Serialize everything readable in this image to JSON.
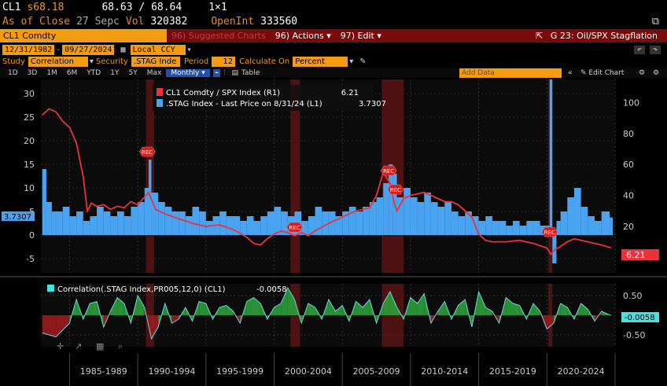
{
  "header": {
    "ticker": "CL1",
    "price": "s68.18",
    "bid_ask": "68.63 / 68.64",
    "size": "1×1",
    "close_label": "As of Close",
    "close_date": "27 Sepc",
    "vol_label": "Vol",
    "vol_value": "320382",
    "openint_label": "OpenInt",
    "openint_value": "333560"
  },
  "toolbar": {
    "security": "CL1 Comdty",
    "suggested": "96) Suggested Charts",
    "actions": "96) Actions",
    "edit": "97) Edit",
    "chart_title": "G 23: Oil/SPX Stagflation"
  },
  "range": {
    "start": "12/31/1982",
    "end": "09/27/2024",
    "ccy": "Local CCY"
  },
  "study": {
    "study_label": "Study",
    "study_value": "Correlation",
    "security_label": "Security",
    "security_value": ".STAG Inde",
    "period_label": "Period",
    "period_value": "12",
    "calc_label": "Calculate On",
    "calc_value": "Percent"
  },
  "tabs": {
    "items": [
      "1D",
      "3D",
      "1M",
      "6M",
      "YTD",
      "1Y",
      "5Y",
      "Max"
    ],
    "freq": "Monthly",
    "table": "Table",
    "add_data": "Add Data",
    "edit_chart": "Edit Chart"
  },
  "legend": {
    "s1_label": "CL1 Comdty / SPX Index (R1)",
    "s1_value": "6.21",
    "s2_label": ".STAG Index - Last Price on 8/31/24 (L1)",
    "s2_value": "3.7307",
    "last_left": "3.7307",
    "last_right": "6.21"
  },
  "recession_label": "REC",
  "lower": {
    "legend": "Correlation(.STAG Index,PR005,12,0) (CL1)",
    "value": "-0.0058",
    "last": "-0.0058"
  },
  "colors": {
    "orange": "#f39c12",
    "red": "#e8323c",
    "blue": "#4aa3f0",
    "green": "#2e9e3a",
    "darkred": "#9a1c1c"
  },
  "chart_data": {
    "type": "bar+line",
    "x_ticks": [
      "1985-1989",
      "1990-1994",
      "1995-1999",
      "2000-2004",
      "2005-2009",
      "2010-2014",
      "2015-2019",
      "2020-2024"
    ],
    "left_axis": {
      "ticks": [
        30,
        25,
        20,
        15,
        10,
        5,
        0,
        -5
      ],
      "ylim": [
        -8,
        33
      ]
    },
    "right_axis": {
      "ticks": [
        100,
        80,
        60,
        40,
        20,
        0
      ],
      "ylim": [
        -10,
        115
      ]
    },
    "recessions": [
      [
        1990.6,
        1991.2
      ],
      [
        2001.2,
        2001.9
      ],
      [
        2007.9,
        2009.5
      ],
      [
        2020.1,
        2020.4
      ]
    ],
    "series": [
      {
        "name": ".STAG Index",
        "axis": "left",
        "style": "bar",
        "x": [
          1983.0,
          1983.3,
          1983.7,
          1984.0,
          1984.5,
          1985.0,
          1985.5,
          1986.0,
          1986.5,
          1987.0,
          1987.5,
          1988.0,
          1988.5,
          1989.0,
          1989.5,
          1990.0,
          1990.5,
          1990.8,
          1991.0,
          1991.5,
          1992.0,
          1992.5,
          1993.0,
          1993.5,
          1994.0,
          1994.5,
          1995.0,
          1995.5,
          1996.0,
          1996.5,
          1997.0,
          1997.5,
          1998.0,
          1998.5,
          1999.0,
          1999.5,
          2000.0,
          2000.5,
          2001.0,
          2001.5,
          2002.0,
          2002.5,
          2003.0,
          2003.5,
          2004.0,
          2004.5,
          2005.0,
          2005.5,
          2006.0,
          2006.5,
          2007.0,
          2007.5,
          2008.0,
          2008.4,
          2008.7,
          2009.0,
          2009.5,
          2010.0,
          2010.5,
          2011.0,
          2011.5,
          2012.0,
          2012.5,
          2013.0,
          2013.5,
          2014.0,
          2014.5,
          2015.0,
          2015.5,
          2016.0,
          2016.5,
          2017.0,
          2017.5,
          2018.0,
          2018.5,
          2019.0,
          2019.5,
          2020.0,
          2020.2,
          2020.4,
          2020.7,
          2021.0,
          2021.5,
          2022.0,
          2022.5,
          2023.0,
          2023.5,
          2024.0,
          2024.6
        ],
        "values": [
          14,
          7,
          5,
          5,
          6,
          4,
          5,
          3,
          4,
          6,
          5,
          4,
          5,
          4,
          6,
          7,
          10,
          16,
          9,
          7,
          6,
          5,
          5,
          4,
          6,
          5,
          3,
          4,
          5,
          4,
          4,
          3,
          4,
          3,
          4,
          5,
          6,
          5,
          4,
          5,
          3,
          4,
          6,
          5,
          5,
          4,
          5,
          6,
          5,
          6,
          7,
          8,
          11,
          15,
          13,
          8,
          10,
          8,
          7,
          9,
          7,
          6,
          7,
          5,
          4,
          5,
          4,
          3,
          4,
          3,
          3,
          2,
          3,
          2,
          3,
          3,
          2,
          2,
          33,
          -6,
          3,
          5,
          8,
          10,
          6,
          4,
          3,
          5,
          3.7307
        ]
      },
      {
        "name": "CL1 Comdty / SPX Index",
        "axis": "right",
        "style": "line",
        "x": [
          1983.0,
          1983.5,
          1984.0,
          1984.5,
          1985.0,
          1985.5,
          1986.0,
          1986.3,
          1986.6,
          1987.0,
          1987.5,
          1988.0,
          1988.5,
          1989.0,
          1989.5,
          1990.0,
          1990.8,
          1991.3,
          1992.0,
          1993.0,
          1994.0,
          1995.0,
          1996.0,
          1997.0,
          1998.0,
          1998.5,
          1999.0,
          1999.5,
          2000.0,
          2000.5,
          2001.0,
          2001.5,
          2002.0,
          2002.5,
          2003.0,
          2004.0,
          2005.0,
          2006.0,
          2007.0,
          2007.5,
          2008.0,
          2008.5,
          2008.8,
          2009.0,
          2009.5,
          2010.0,
          2011.0,
          2012.0,
          2012.5,
          2013.0,
          2013.5,
          2014.0,
          2014.5,
          2015.0,
          2015.5,
          2016.0,
          2017.0,
          2018.0,
          2019.0,
          2020.0,
          2020.3,
          2020.6,
          2021.0,
          2021.5,
          2022.0,
          2022.5,
          2023.0,
          2023.5,
          2024.0,
          2024.7
        ],
        "values": [
          92,
          96,
          94,
          88,
          84,
          74,
          52,
          30,
          35,
          33,
          34,
          31,
          33,
          32,
          36,
          34,
          42,
          31,
          28,
          25,
          22,
          20,
          21,
          18,
          13,
          9,
          8,
          12,
          15,
          17,
          16,
          14,
          16,
          14,
          17,
          22,
          26,
          30,
          32,
          40,
          55,
          48,
          35,
          30,
          38,
          40,
          42,
          38,
          36,
          36,
          34,
          30,
          26,
          15,
          11,
          10,
          10,
          11,
          9,
          6,
          2,
          5,
          7,
          10,
          12,
          11,
          10,
          9,
          8,
          6.21
        ]
      }
    ],
    "correlation": {
      "name": "Correlation(.STAG Index,PR005,12,0) (CL1)",
      "ylim": [
        -0.8,
        0.8
      ],
      "ticks": [
        0.5,
        -0.5
      ],
      "x": [
        1983.0,
        1984.0,
        1985.0,
        1985.5,
        1986.0,
        1986.5,
        1987.0,
        1987.5,
        1988.0,
        1988.5,
        1989.0,
        1989.5,
        1990.0,
        1990.5,
        1991.0,
        1991.5,
        1992.0,
        1992.5,
        1993.0,
        1993.5,
        1994.0,
        1994.5,
        1995.0,
        1995.5,
        1996.0,
        1996.5,
        1997.0,
        1997.5,
        1998.0,
        1998.5,
        1999.0,
        1999.5,
        2000.0,
        2000.5,
        2001.0,
        2001.5,
        2002.0,
        2002.5,
        2003.0,
        2003.5,
        2004.0,
        2004.5,
        2005.0,
        2005.5,
        2006.0,
        2006.5,
        2007.0,
        2007.5,
        2008.0,
        2008.5,
        2009.0,
        2009.5,
        2010.0,
        2010.5,
        2011.0,
        2011.5,
        2012.0,
        2012.5,
        2013.0,
        2013.5,
        2014.0,
        2014.5,
        2015.0,
        2015.5,
        2016.0,
        2016.5,
        2017.0,
        2017.5,
        2018.0,
        2018.5,
        2019.0,
        2019.5,
        2020.0,
        2020.5,
        2021.0,
        2021.5,
        2022.0,
        2022.5,
        2023.0,
        2023.5,
        2024.0,
        2024.7
      ],
      "values": [
        -0.45,
        -0.55,
        -0.2,
        0.4,
        -0.1,
        0.3,
        0.35,
        -0.3,
        0.1,
        0.45,
        0.3,
        -0.2,
        0.5,
        0.2,
        -0.6,
        -0.3,
        0.3,
        -0.2,
        -0.1,
        0.2,
        -0.15,
        0.35,
        0.3,
        -0.1,
        0.2,
        0.25,
        0.1,
        -0.2,
        0.35,
        0.45,
        0.3,
        -0.1,
        0.2,
        0.3,
        0.7,
        0.4,
        -0.2,
        0.3,
        0.2,
        -0.1,
        0.4,
        0.1,
        0.25,
        -0.15,
        0.35,
        0.2,
        0.4,
        -0.2,
        0.3,
        0.6,
        0.2,
        -0.1,
        0.45,
        0.3,
        0.55,
        -0.2,
        0.1,
        0.35,
        -0.1,
        0.25,
        0.4,
        -0.3,
        0.6,
        0.2,
        0.1,
        -0.2,
        0.45,
        0.3,
        0.25,
        -0.1,
        0.3,
        0.1,
        -0.35,
        -0.2,
        0.3,
        0.2,
        -0.1,
        0.3,
        0.15,
        -0.15,
        0.1,
        -0.0058
      ]
    }
  }
}
